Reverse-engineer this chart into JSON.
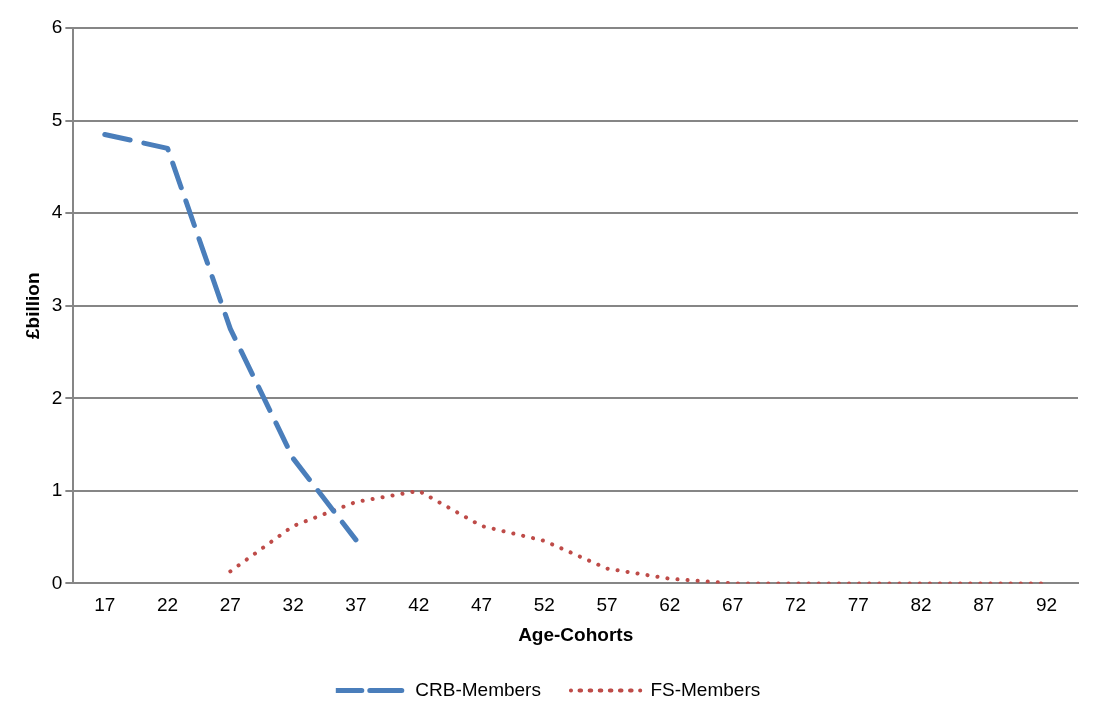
{
  "chart_data": {
    "type": "line",
    "xlabel": "Age-Cohorts",
    "ylabel": "£billion",
    "categories": [
      "17",
      "22",
      "27",
      "32",
      "37",
      "42",
      "47",
      "52",
      "57",
      "62",
      "67",
      "72",
      "77",
      "82",
      "87",
      "92"
    ],
    "series": [
      {
        "name": "CRB-Members",
        "color": "#4a7ebb",
        "line_style": "dashed",
        "values": [
          4.85,
          4.7,
          2.75,
          1.35,
          0.47,
          null,
          null,
          null,
          null,
          null,
          null,
          null,
          null,
          null,
          null,
          null
        ]
      },
      {
        "name": "FS-Members",
        "color": "#be4b48",
        "line_style": "dotted",
        "values": [
          null,
          null,
          0.13,
          0.62,
          0.88,
          1.0,
          0.62,
          0.46,
          0.16,
          0.05,
          0,
          0,
          0,
          0,
          0,
          0
        ]
      }
    ],
    "ylim": [
      0,
      6
    ],
    "yticks": [
      0,
      1,
      2,
      3,
      4,
      5,
      6
    ],
    "grid": "y",
    "legend": "bottom",
    "marker": "none"
  }
}
